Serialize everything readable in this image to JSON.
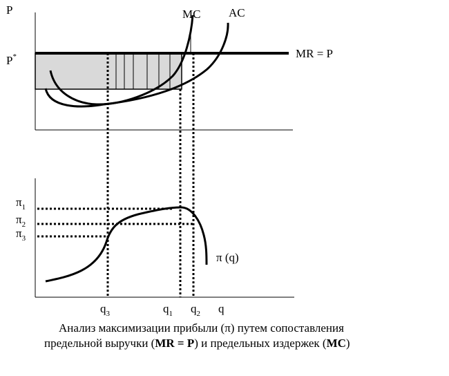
{
  "top_chart": {
    "y_axis_label": "P",
    "price_label": "P",
    "price_label_sup": "*",
    "mc_label": "MC",
    "ac_label": "AC",
    "mr_label": "MR = P"
  },
  "bottom_chart": {
    "pi1": {
      "main": "π",
      "sub": "1"
    },
    "pi2": {
      "main": "π",
      "sub": "2"
    },
    "pi3": {
      "main": "π",
      "sub": "3"
    },
    "curve_label": "π (q)",
    "x_axis_label": "q",
    "q3": {
      "main": "q",
      "sub": "3"
    },
    "q1": {
      "main": "q",
      "sub": "1"
    },
    "q2": {
      "main": "q",
      "sub": "2"
    }
  },
  "caption": {
    "line1": "Анализ максимизации прибыли (π) путем сопоставления",
    "line2_a": "предельной выручки (",
    "line2_b": "MR = P",
    "line2_c": ") и предельных издержек (",
    "line2_d": "MC",
    "line2_e": ")"
  },
  "colors": {
    "line": "#000000",
    "shade": "#d9d9d9"
  }
}
